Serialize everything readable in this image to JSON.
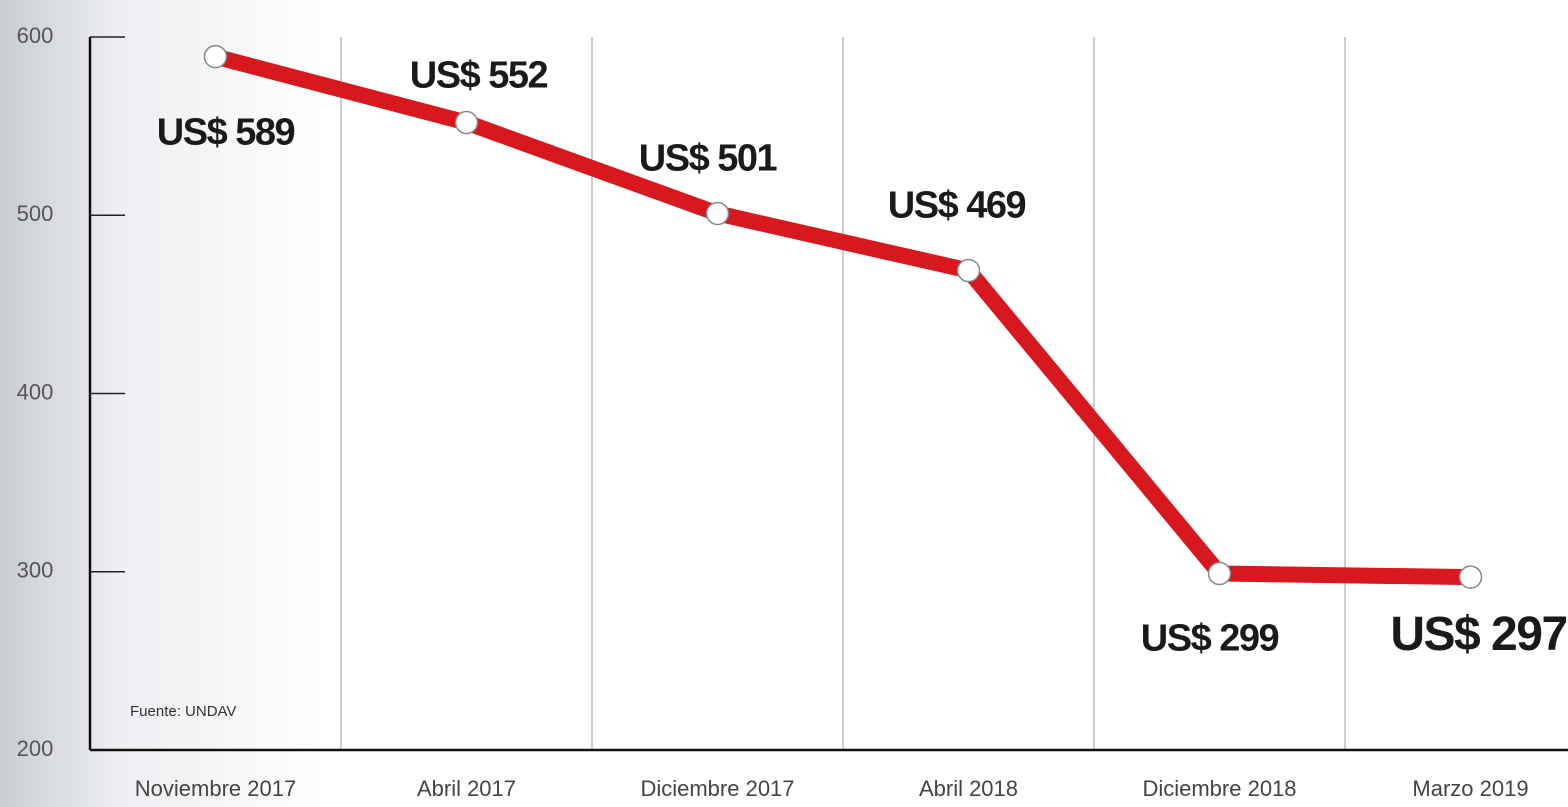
{
  "chart_data": {
    "type": "line",
    "categories": [
      "Noviembre 2017",
      "Abril 2017",
      "Diciembre 2017",
      "Abril 2018",
      "Diciembre 2018",
      "Marzo 2019"
    ],
    "values": [
      589,
      552,
      501,
      469,
      299,
      297
    ],
    "value_labels": [
      "US$ 589",
      "US$ 552",
      "US$ 501",
      "US$ 469",
      "US$ 299",
      "US$ 297"
    ],
    "color": "#d7191f",
    "ylim": [
      200,
      600
    ],
    "yticks": [
      200,
      300,
      400,
      500,
      600
    ],
    "annotation": "Fuente: UNDAV",
    "grid": true
  }
}
